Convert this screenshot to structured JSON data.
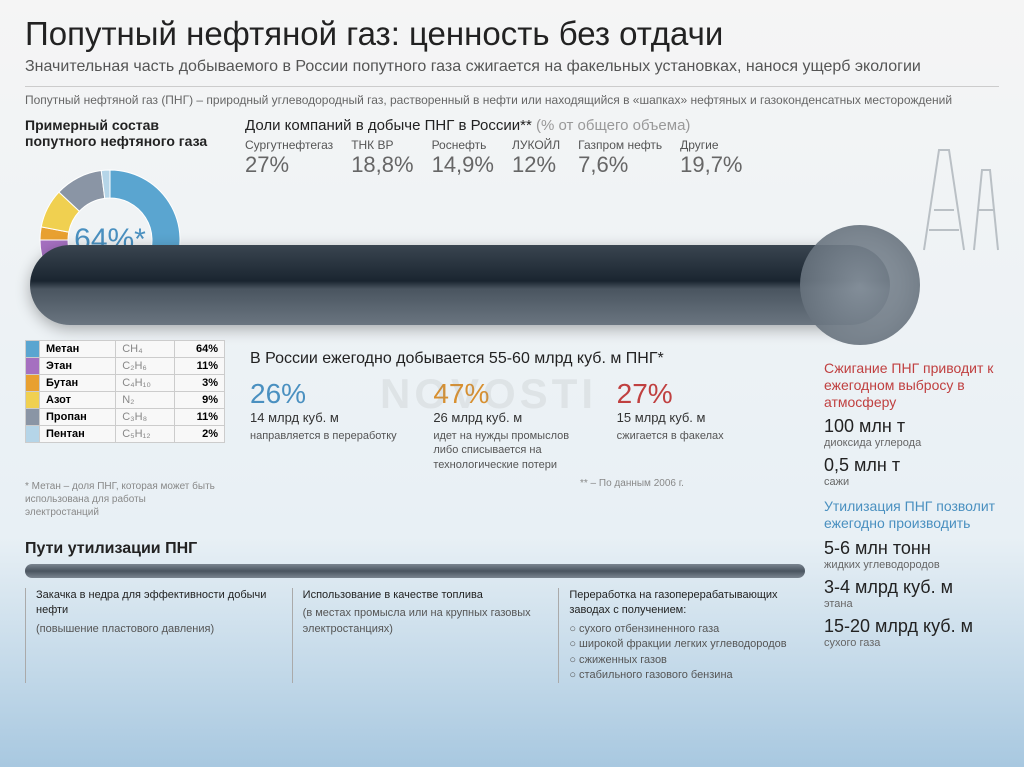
{
  "title": "Попутный нефтяной газ: ценность без отдачи",
  "subtitle": "Значительная часть добываемого в России попутного газа сжигается на факельных установках, нанося ущерб экологии",
  "definition": "Попутный нефтяной газ (ПНГ) – природный углеводородный газ, растворенный в нефти или находящийся в «шапках» нефтяных и газоконденсатных месторождений",
  "composition": {
    "title": "Примерный состав попутного нефтяного газа",
    "center_label": "64%*",
    "items": [
      {
        "name": "Метан",
        "formula": "CH₄",
        "pct": "64%",
        "color": "#5aa5d0"
      },
      {
        "name": "Этан",
        "formula": "C₂H₆",
        "pct": "11%",
        "color": "#a570c0"
      },
      {
        "name": "Бутан",
        "formula": "C₄H₁₀",
        "pct": "3%",
        "color": "#e8a030"
      },
      {
        "name": "Азот",
        "formula": "N₂",
        "pct": "9%",
        "color": "#f0d050"
      },
      {
        "name": "Пропан",
        "formula": "C₃H₈",
        "pct": "11%",
        "color": "#8a95a5"
      },
      {
        "name": "Пентан",
        "formula": "C₅H₁₂",
        "pct": "2%",
        "color": "#b5d5e8"
      }
    ],
    "slices": [
      {
        "color": "#5aa5d0",
        "start": 0,
        "end": 230.4
      },
      {
        "color": "#a570c0",
        "start": 230.4,
        "end": 270
      },
      {
        "color": "#e8a030",
        "start": 270,
        "end": 280.8
      },
      {
        "color": "#f0d050",
        "start": 280.8,
        "end": 313.2
      },
      {
        "color": "#8a95a5",
        "start": 313.2,
        "end": 352.8
      },
      {
        "color": "#b5d5e8",
        "start": 352.8,
        "end": 360
      }
    ]
  },
  "companies": {
    "title": "Доли компаний в добыче ПНГ в России**",
    "title_suffix": "(% от общего объема)",
    "list": [
      {
        "name": "Сургутнефтегаз",
        "val": "27%"
      },
      {
        "name": "ТНК ВР",
        "val": "18,8%"
      },
      {
        "name": "Роснефть",
        "val": "14,9%"
      },
      {
        "name": "ЛУКОЙЛ",
        "val": "12%"
      },
      {
        "name": "Газпром нефть",
        "val": "7,6%"
      },
      {
        "name": "Другие",
        "val": "19,7%"
      }
    ]
  },
  "footnote": "* Метан – доля ПНГ, которая может быть использована для работы электростанций",
  "middle": {
    "title": "В России ежегодно добывается 55-60 млрд куб. м ПНГ*",
    "stats": [
      {
        "pct": "26%",
        "color": "blue",
        "vol": "14 млрд куб. м",
        "desc": "направляется в переработку"
      },
      {
        "pct": "47%",
        "color": "orange",
        "vol": "26 млрд куб. м",
        "desc": "идет на нужды промыслов либо списывается на технологические потери"
      },
      {
        "pct": "27%",
        "color": "red",
        "vol": "15 млрд куб. м",
        "desc": "сжигается в факелах"
      }
    ],
    "source": "** – По данным 2006 г."
  },
  "sidebar": {
    "burn_title": "Сжигание ПНГ приводит к ежегодном выбросу в атмосферу",
    "burn": [
      {
        "big": "100 млн т",
        "small": "диоксида углерода"
      },
      {
        "big": "0,5 млн т",
        "small": "сажи"
      }
    ],
    "util_title": "Утилизация ПНГ позволит ежегодно производить",
    "util": [
      {
        "big": "5-6 млн тонн",
        "small": "жидких углеводородов"
      },
      {
        "big": "3-4 млрд куб. м",
        "small": "этана"
      },
      {
        "big": "15-20 млрд куб. м",
        "small": "сухого газа"
      }
    ]
  },
  "utilization": {
    "title": "Пути утилизации ПНГ",
    "cols": [
      {
        "title": "Закачка в недра для эффективности добычи нефти",
        "body": "(повышение пластового давления)"
      },
      {
        "title": "Использование в качестве топлива",
        "body": "(в местах промысла или на крупных газовых электростанциях)"
      },
      {
        "title": "Переработка на газоперерабатывающих заводах с получением:",
        "body": "○ сухого отбензиненного газа\n○ широкой фракции легких углеводородов\n○ сжиженных газов\n○ стабильного газового бензина"
      }
    ]
  },
  "watermark": "NOVOSTI"
}
